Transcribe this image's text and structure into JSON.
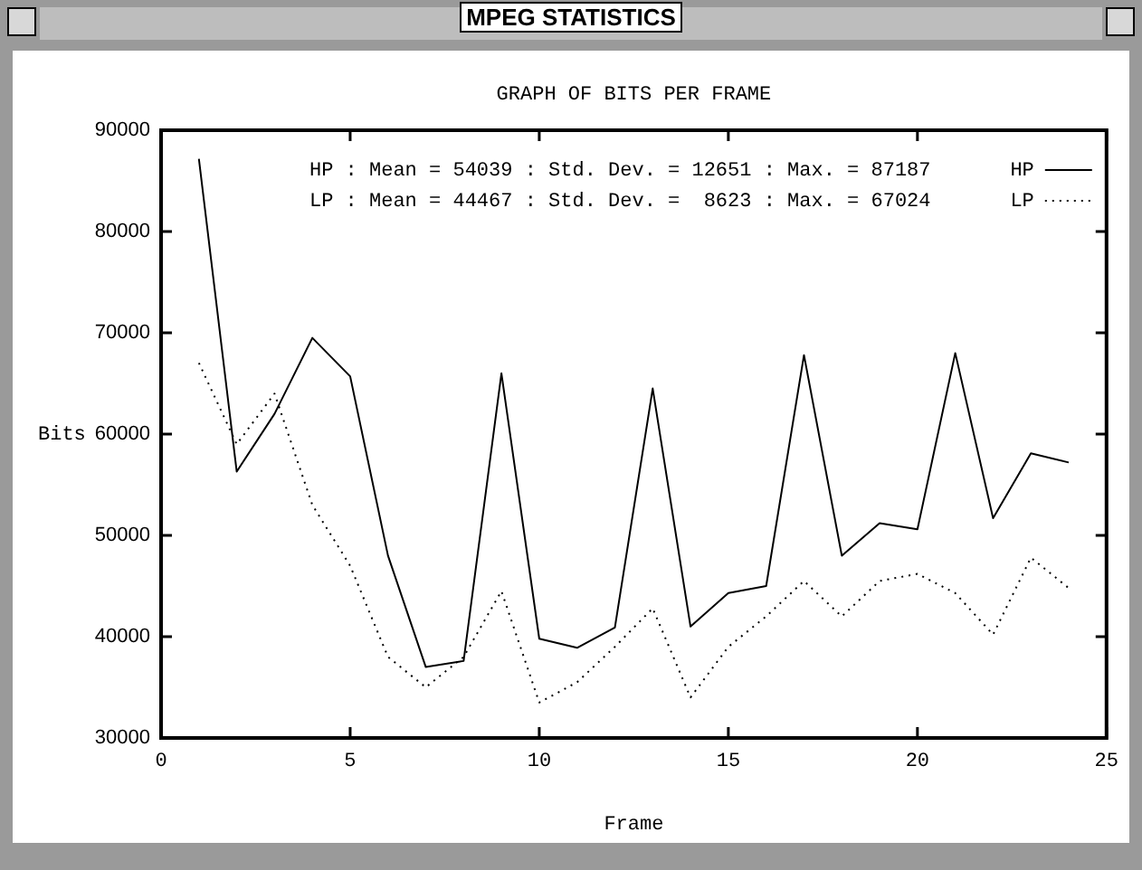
{
  "chart_data": {
    "type": "line",
    "title": "MPEG STATISTICS",
    "subtitle": "GRAPH OF BITS PER FRAME",
    "xlabel": "Frame",
    "ylabel": "Bits",
    "annotations": [
      "HP : Mean = 54039 : Std. Dev. = 12651 : Max. = 87187",
      "LP : Mean = 44467 : Std. Dev. =  8623 : Max. = 67024"
    ],
    "x": [
      1,
      2,
      3,
      4,
      5,
      6,
      7,
      8,
      9,
      10,
      11,
      12,
      13,
      14,
      15,
      16,
      17,
      18,
      19,
      20,
      21,
      22,
      23,
      24
    ],
    "series": [
      {
        "name": "HP",
        "color": "#000000",
        "line_style": "solid",
        "values": [
          87187,
          56300,
          62000,
          69500,
          65700,
          48000,
          37000,
          37600,
          66000,
          39800,
          38900,
          40900,
          64500,
          41000,
          44300,
          45000,
          67800,
          48000,
          51200,
          50600,
          68000,
          51700,
          58100,
          57200
        ]
      },
      {
        "name": "LP",
        "color": "#000000",
        "line_style": "dotted",
        "values": [
          67024,
          59000,
          64000,
          53000,
          47000,
          38000,
          35000,
          38000,
          44500,
          33500,
          35500,
          39000,
          42800,
          34000,
          39000,
          42000,
          45500,
          42000,
          45500,
          46200,
          44300,
          40200,
          47800,
          44800
        ]
      }
    ],
    "xlim": [
      0,
      25
    ],
    "xticks": [
      0,
      5,
      10,
      15,
      20,
      25
    ],
    "ylim": [
      30000,
      90000
    ],
    "yticks": [
      30000,
      40000,
      50000,
      60000,
      70000,
      80000,
      90000
    ],
    "grid": false,
    "legend": "top right",
    "marker": "none"
  }
}
